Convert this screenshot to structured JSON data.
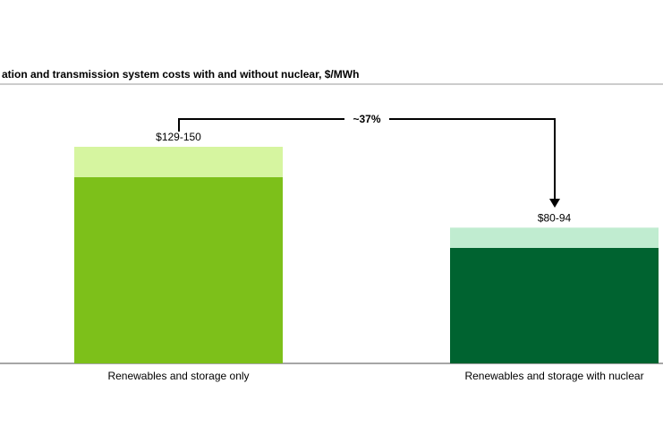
{
  "chart_data": {
    "type": "stacked_bar",
    "title": "ation and transmission system costs with and without nuclear, $/MWh",
    "categories": [
      "Renewables and storage only",
      "Renewables and storage with nuclear"
    ],
    "series": [
      {
        "colors": [
          "#7dc01a",
          "#006330"
        ],
        "values": [
          129,
          80
        ]
      },
      {
        "colors": [
          "#d6f5a0",
          "#c0ecd0"
        ],
        "values": [
          21,
          14
        ]
      }
    ],
    "range_labels": [
      "$129-150",
      "$80-94"
    ],
    "annotation": "~37%",
    "ylim": [
      0,
      150
    ]
  }
}
